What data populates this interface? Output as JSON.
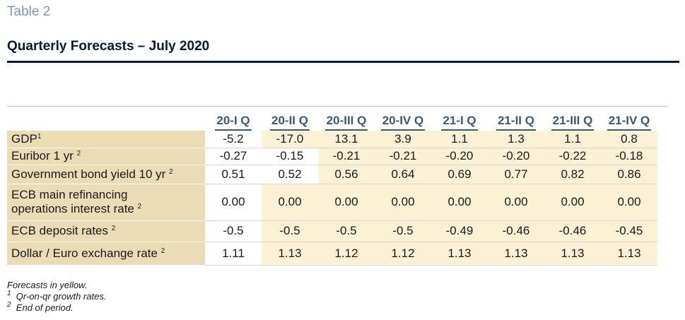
{
  "header": {
    "table_label": "Table 2",
    "title": "Quarterly Forecasts – July 2020"
  },
  "table": {
    "columns": [
      "20-I Q",
      "20-II Q",
      "20-III Q",
      "20-IV Q",
      "21-I Q",
      "21-II Q",
      "21-III Q",
      "21-IV Q"
    ],
    "rows": [
      {
        "label": "GDP",
        "sup": "1",
        "values": [
          "-5.2",
          "-17.0",
          "13.1",
          "3.9",
          "1.1",
          "1.3",
          "1.1",
          "0.8"
        ]
      },
      {
        "label": "Euribor 1 yr",
        "sup": "2",
        "values": [
          "-0.27",
          "-0.15",
          "-0.21",
          "-0.21",
          "-0.20",
          "-0.20",
          "-0.22",
          "-0.18"
        ]
      },
      {
        "label": "Government bond yield 10 yr",
        "sup": "2",
        "values": [
          "0.51",
          "0.52",
          "0.56",
          "0.64",
          "0.69",
          "0.77",
          "0.82",
          "0.86"
        ]
      },
      {
        "label_line1": "ECB main refinancing",
        "label_line2": "operations interest rate",
        "sup": "2",
        "values": [
          "0.00",
          "0.00",
          "0.00",
          "0.00",
          "0.00",
          "0.00",
          "0.00",
          "0.00"
        ]
      },
      {
        "label": "ECB deposit rates",
        "sup": "2",
        "values": [
          "-0.5",
          "-0.5",
          "-0.5",
          "-0.5",
          "-0.49",
          "-0.46",
          "-0.46",
          "-0.45"
        ]
      },
      {
        "label": "Dollar / Euro exchange rate",
        "sup": "2",
        "values": [
          "1.11",
          "1.13",
          "1.12",
          "1.12",
          "1.13",
          "1.13",
          "1.13",
          "1.13"
        ]
      }
    ]
  },
  "footnotes": {
    "note": "Forecasts in yellow.",
    "fn1_mark": "1",
    "fn1_text": "Qr-on-qr growth rates.",
    "fn2_mark": "2",
    "fn2_text": "End of period."
  },
  "colors": {
    "label_bg": "#ecdcb6",
    "forecast_bg": "#fbf1d5",
    "header_text": "#3c5877",
    "title_rule": "#0a1a33"
  }
}
